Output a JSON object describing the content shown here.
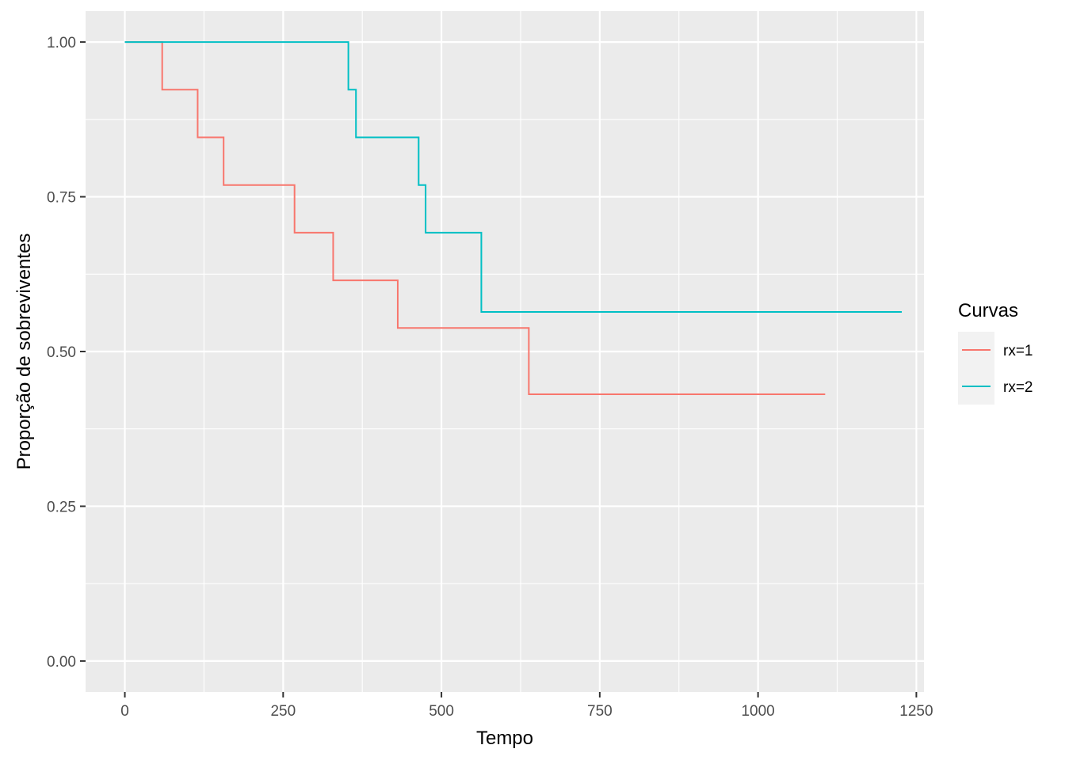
{
  "chart_data": {
    "type": "line",
    "step": true,
    "xlabel": "Tempo",
    "ylabel": "Proporção de sobreviventes",
    "xlim": [
      -62,
      1262
    ],
    "ylim": [
      -0.05,
      1.05
    ],
    "x_ticks": [
      0,
      250,
      500,
      750,
      1000,
      1250
    ],
    "x_tick_labels": [
      "0",
      "250",
      "500",
      "750",
      "1000",
      "1250"
    ],
    "y_ticks": [
      0,
      0.25,
      0.5,
      0.75,
      1
    ],
    "y_tick_labels": [
      "0.00",
      "0.25",
      "0.50",
      "0.75",
      "1.00"
    ],
    "grid": true,
    "panel_background": "#EBEBEB",
    "grid_color": "#FFFFFF",
    "legend": {
      "title": "Curvas",
      "placement": "right"
    },
    "series": [
      {
        "name": "rx=1",
        "color": "#F8766D",
        "x": [
          0,
          59,
          115,
          156,
          268,
          329,
          431,
          638,
          1106
        ],
        "y": [
          1.0,
          0.923,
          0.846,
          0.769,
          0.692,
          0.615,
          0.538,
          0.431,
          0.431
        ]
      },
      {
        "name": "rx=2",
        "color": "#00BFC4",
        "x": [
          0,
          353,
          365,
          464,
          475,
          563,
          1227
        ],
        "y": [
          1.0,
          0.923,
          0.846,
          0.769,
          0.692,
          0.564,
          0.564
        ]
      }
    ]
  }
}
